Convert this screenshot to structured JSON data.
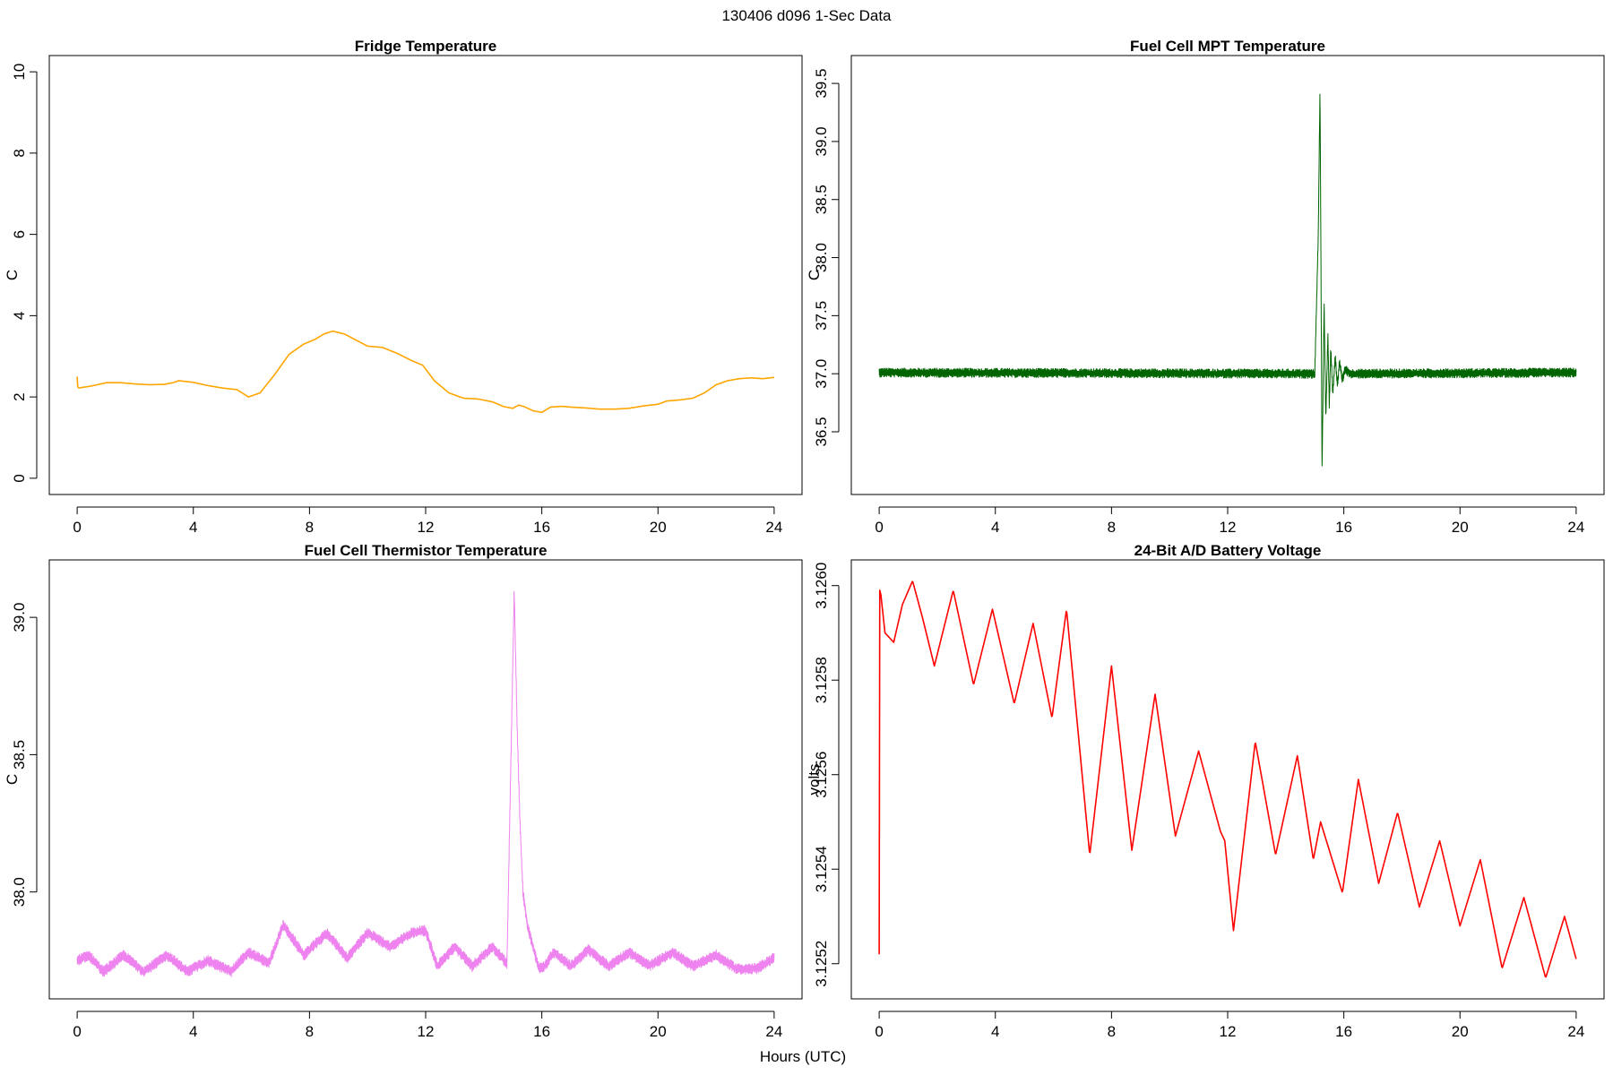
{
  "figure": {
    "title": "130406   d096   1-Sec Data",
    "xlabel": "Hours (UTC)"
  },
  "chart_data": [
    {
      "id": "fridge",
      "type": "line",
      "title": "Fridge Temperature",
      "xlabel": "",
      "ylabel": "C",
      "color": "#ffa500",
      "xlim": [
        0,
        24
      ],
      "ylim": [
        0,
        10
      ],
      "xticks": [
        0,
        4,
        8,
        12,
        16,
        20,
        24
      ],
      "yticks": [
        0,
        2,
        4,
        6,
        8,
        10
      ],
      "ytick_labels": [
        "0",
        "2",
        "4",
        "6",
        "8",
        "10"
      ],
      "noise": 0.0,
      "series": [
        {
          "x": [
            0,
            0.02,
            0.05,
            0.5,
            1,
            1.5,
            2,
            2.5,
            3,
            3.3,
            3.5,
            4,
            4.5,
            5,
            5.5,
            5.9,
            6.3,
            6.8,
            7.3,
            7.8,
            8.2,
            8.5,
            8.8,
            9.2,
            9.6,
            10,
            10.5,
            11,
            11.5,
            11.9,
            12.3,
            12.8,
            13.3,
            13.8,
            14.3,
            14.7,
            15,
            15.2,
            15.4,
            15.7,
            16,
            16.3,
            16.7,
            17,
            17.5,
            18,
            18.5,
            19,
            19.5,
            20,
            20.3,
            20.8,
            21.2,
            21.6,
            22,
            22.4,
            22.8,
            23.2,
            23.6,
            24
          ],
          "y": [
            2.5,
            2.25,
            2.22,
            2.27,
            2.35,
            2.35,
            2.32,
            2.3,
            2.31,
            2.35,
            2.4,
            2.36,
            2.28,
            2.22,
            2.18,
            2.0,
            2.1,
            2.55,
            3.05,
            3.3,
            3.42,
            3.55,
            3.62,
            3.55,
            3.4,
            3.25,
            3.22,
            3.08,
            2.9,
            2.78,
            2.4,
            2.1,
            1.97,
            1.95,
            1.88,
            1.76,
            1.72,
            1.8,
            1.76,
            1.66,
            1.62,
            1.75,
            1.77,
            1.75,
            1.73,
            1.7,
            1.7,
            1.72,
            1.78,
            1.82,
            1.9,
            1.93,
            1.97,
            2.1,
            2.3,
            2.4,
            2.45,
            2.47,
            2.45,
            2.48
          ]
        }
      ]
    },
    {
      "id": "mpt",
      "type": "line",
      "title": "Fuel Cell MPT Temperature",
      "xlabel": "",
      "ylabel": "C",
      "color": "#006400",
      "xlim": [
        0,
        24
      ],
      "ylim": [
        36.1,
        39.6
      ],
      "xticks": [
        0,
        4,
        8,
        12,
        16,
        20,
        24
      ],
      "yticks": [
        36.5,
        37.0,
        37.5,
        38.0,
        38.5,
        39.0,
        39.5
      ],
      "ytick_labels": [
        "36.5",
        "37.0",
        "37.5",
        "38.0",
        "38.5",
        "39.0",
        "39.5"
      ],
      "noise": 0.04,
      "series": [
        {
          "x": [
            0,
            15.0,
            15.12,
            15.18,
            15.25,
            15.32,
            15.38,
            15.45,
            15.5,
            15.55,
            15.62,
            15.7,
            15.78,
            15.85,
            15.95,
            16.05,
            16.2,
            24
          ],
          "y": [
            37.01,
            37.0,
            38.2,
            39.48,
            36.15,
            37.62,
            36.6,
            37.35,
            36.72,
            37.22,
            36.82,
            37.15,
            36.9,
            37.1,
            36.95,
            37.04,
            37.0,
            37.01
          ]
        }
      ]
    },
    {
      "id": "thermistor",
      "type": "line",
      "title": "Fuel Cell Thermistor Temperature",
      "xlabel": "",
      "ylabel": "C",
      "color": "#ee82ee",
      "xlim": [
        0,
        24
      ],
      "ylim": [
        37.67,
        39.15
      ],
      "xticks": [
        0,
        4,
        8,
        12,
        16,
        20,
        24
      ],
      "yticks": [
        38.0,
        38.5,
        39.0
      ],
      "ytick_labels": [
        "38.0",
        "38.5",
        "39.0"
      ],
      "noise": 0.02,
      "series": [
        {
          "x": [
            0,
            0.4,
            0.9,
            1.6,
            2.3,
            3.1,
            3.8,
            4.5,
            5.3,
            5.9,
            6.6,
            7.1,
            7.8,
            8.6,
            9.3,
            10.0,
            10.8,
            11.5,
            12.0,
            12.4,
            13.0,
            13.6,
            14.3,
            14.8,
            15.05,
            15.15,
            15.25,
            15.35,
            15.5,
            15.7,
            15.9,
            16.1,
            16.4,
            17.0,
            17.6,
            18.3,
            19.0,
            19.7,
            20.5,
            21.2,
            22.0,
            22.7,
            23.4,
            24
          ],
          "y": [
            37.75,
            37.77,
            37.71,
            37.77,
            37.71,
            37.77,
            37.71,
            37.75,
            37.71,
            37.78,
            37.74,
            37.88,
            37.77,
            37.85,
            37.76,
            37.85,
            37.8,
            37.85,
            37.86,
            37.73,
            37.8,
            37.73,
            37.8,
            37.74,
            39.1,
            38.6,
            38.25,
            38.0,
            37.88,
            37.8,
            37.72,
            37.73,
            37.78,
            37.73,
            37.79,
            37.73,
            37.78,
            37.73,
            37.78,
            37.73,
            37.77,
            37.72,
            37.72,
            37.76
          ]
        }
      ]
    },
    {
      "id": "voltage",
      "type": "line",
      "title": "24-Bit A/D Battery Voltage",
      "xlabel": "",
      "ylabel": "volts",
      "color": "#ff0000",
      "xlim": [
        0,
        24
      ],
      "ylim": [
        3.12516,
        3.12602
      ],
      "xticks": [
        0,
        4,
        8,
        12,
        16,
        20,
        24
      ],
      "yticks": [
        3.1252,
        3.1254,
        3.1256,
        3.1258,
        3.126
      ],
      "ytick_labels": [
        "3.1252",
        "3.1254",
        "3.1256",
        "3.1258",
        "3.1260"
      ],
      "noise": 0.0,
      "series": [
        {
          "x": [
            0,
            0.02,
            0.06,
            0.2,
            0.5,
            0.8,
            1.15,
            1.5,
            1.9,
            2.55,
            3.25,
            3.9,
            4.65,
            5.3,
            5.95,
            6.45,
            7.25,
            8.0,
            8.7,
            9.5,
            10.2,
            11.0,
            11.75,
            11.9,
            12.2,
            12.95,
            13.65,
            14.4,
            14.95,
            15.2,
            15.95,
            16.5,
            17.2,
            17.85,
            18.6,
            19.3,
            20.0,
            20.7,
            21.45,
            22.2,
            22.95,
            23.6,
            24
          ],
          "y": [
            3.12522,
            3.12599,
            3.12598,
            3.1259,
            3.12588,
            3.12596,
            3.12601,
            3.12593,
            3.12583,
            3.12599,
            3.12579,
            3.12595,
            3.12575,
            3.12592,
            3.12572,
            3.12595,
            3.12543,
            3.12583,
            3.12544,
            3.12577,
            3.12547,
            3.12565,
            3.12548,
            3.12546,
            3.12527,
            3.12567,
            3.12543,
            3.12564,
            3.12542,
            3.1255,
            3.12535,
            3.12559,
            3.12537,
            3.12552,
            3.12532,
            3.12546,
            3.12528,
            3.12542,
            3.12519,
            3.12534,
            3.12517,
            3.1253,
            3.12521
          ]
        }
      ]
    }
  ]
}
